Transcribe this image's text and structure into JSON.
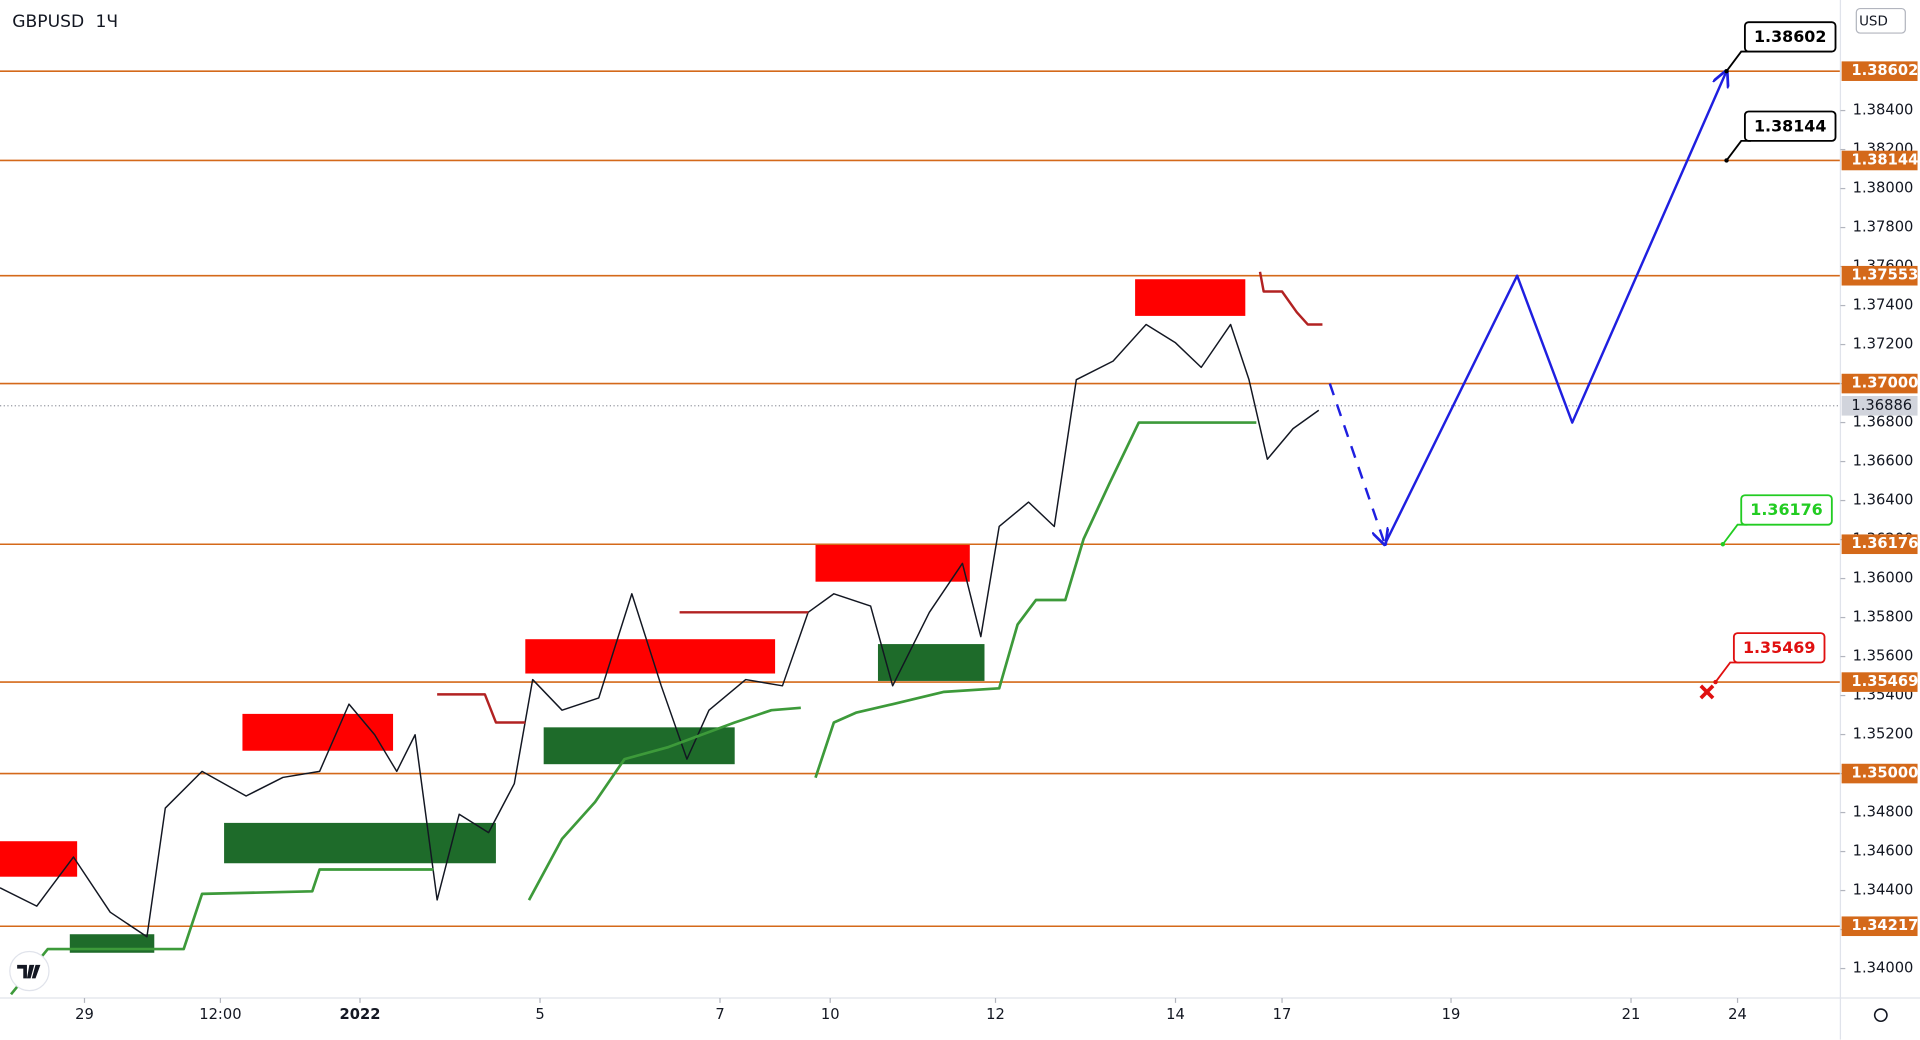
{
  "chart_data": {
    "type": "line",
    "symbol": "GBPUSD",
    "interval": "1Ч",
    "currency": "USD",
    "ylim": [
      1.33849,
      1.38967
    ],
    "xlim": [
      0,
      500
    ],
    "yticks": [
      {
        "value": 1.34,
        "label": "1.34000"
      },
      {
        "value": 1.342,
        "label": "1.34200"
      },
      {
        "value": 1.344,
        "label": "1.34400"
      },
      {
        "value": 1.346,
        "label": "1.34600"
      },
      {
        "value": 1.348,
        "label": "1.34800"
      },
      {
        "value": 1.35,
        "label": "1.35000"
      },
      {
        "value": 1.352,
        "label": "1.35200"
      },
      {
        "value": 1.354,
        "label": "1.35400"
      },
      {
        "value": 1.356,
        "label": "1.35600"
      },
      {
        "value": 1.358,
        "label": "1.35800"
      },
      {
        "value": 1.36,
        "label": "1.36000"
      },
      {
        "value": 1.362,
        "label": "1.36200"
      },
      {
        "value": 1.364,
        "label": "1.36400"
      },
      {
        "value": 1.366,
        "label": "1.36600"
      },
      {
        "value": 1.368,
        "label": "1.36800"
      },
      {
        "value": 1.37,
        "label": "1.37000"
      },
      {
        "value": 1.372,
        "label": "1.37200"
      },
      {
        "value": 1.374,
        "label": "1.37400"
      },
      {
        "value": 1.376,
        "label": "1.37600"
      },
      {
        "value": 1.378,
        "label": "1.37800"
      },
      {
        "value": 1.38,
        "label": "1.38000"
      },
      {
        "value": 1.382,
        "label": "1.38200"
      },
      {
        "value": 1.384,
        "label": "1.38400"
      }
    ],
    "xticks": [
      {
        "value": 23,
        "label": "29"
      },
      {
        "value": 60,
        "label": "12:00"
      },
      {
        "value": 98,
        "label": "2022"
      },
      {
        "value": 147,
        "label": "5"
      },
      {
        "value": 196,
        "label": "7"
      },
      {
        "value": 226,
        "label": "10"
      },
      {
        "value": 271,
        "label": "12"
      },
      {
        "value": 320,
        "label": "14"
      },
      {
        "value": 349,
        "label": "17"
      },
      {
        "value": 395,
        "label": "19"
      },
      {
        "value": 444,
        "label": "21"
      },
      {
        "value": 473,
        "label": "24"
      }
    ],
    "levels": [
      1.38602,
      1.38144,
      1.37553,
      {
        "value": 1.37,
        "label": "1.37000"
      },
      1.36176,
      1.35469,
      {
        "value": 1.35,
        "label": "1.35000"
      },
      1.34217
    ],
    "level_color": "#d4691a",
    "last_price": 1.36886,
    "series": [
      {
        "color": "#131722",
        "width": 1.2,
        "x": [
          0,
          10,
          20,
          30,
          40,
          45,
          55,
          67,
          77,
          87,
          95,
          102,
          108,
          113,
          119,
          125,
          133,
          140,
          145,
          153,
          163,
          172,
          180,
          187,
          193,
          203,
          213,
          220,
          227,
          237,
          243,
          253,
          262,
          267,
          272,
          280,
          287,
          293,
          303,
          312,
          320,
          327,
          335,
          340,
          345,
          352,
          359
        ],
        "values": [
          1.34414,
          1.3432,
          1.34572,
          1.34289,
          1.34163,
          1.34823,
          1.35011,
          1.34885,
          1.3498,
          1.35011,
          1.35356,
          1.35199,
          1.35011,
          1.35199,
          1.34352,
          1.34791,
          1.34697,
          1.34948,
          1.35482,
          1.35325,
          1.35388,
          1.35922,
          1.3545,
          1.35074,
          1.35325,
          1.35482,
          1.3545,
          1.35827,
          1.35922,
          1.35859,
          1.3545,
          1.35827,
          1.36078,
          1.35702,
          1.36267,
          1.36392,
          1.36267,
          1.3702,
          1.37115,
          1.37303,
          1.37209,
          1.37083,
          1.37303,
          1.3702,
          1.36612,
          1.36769,
          1.36863
        ]
      },
      {
        "color": "#3d9a3a",
        "width": 2.2,
        "x": [
          3,
          13,
          50,
          55,
          85,
          87,
          118,
          null,
          144,
          153,
          162,
          170,
          182,
          200,
          210,
          218,
          null,
          222,
          227,
          233,
          243,
          257,
          272,
          277,
          282,
          290,
          295,
          302,
          310,
          342
        ],
        "values": [
          1.33868,
          1.341,
          1.341,
          1.34383,
          1.34396,
          1.34508,
          1.34508,
          null,
          1.34351,
          1.34665,
          1.34854,
          1.35074,
          1.35136,
          1.35262,
          1.35325,
          1.35337,
          null,
          1.34979,
          1.35262,
          1.35312,
          1.35356,
          1.35419,
          1.35437,
          1.35764,
          1.3589,
          1.3589,
          1.36204,
          1.36487,
          1.368,
          1.368
        ]
      },
      {
        "color": "#b22222",
        "width": 2,
        "x": [
          119,
          132,
          135,
          143,
          null,
          185,
          220,
          null,
          343,
          344,
          349,
          353,
          356,
          360
        ],
        "values": [
          1.35406,
          1.35406,
          1.35262,
          1.35262,
          null,
          1.35827,
          1.35827,
          null,
          1.37573,
          1.37472,
          1.37472,
          1.37366,
          1.37303,
          1.37303
        ]
      },
      {
        "color": "#1f1fe0",
        "width": 2,
        "dashed": true,
        "x": [
          362,
          377
        ],
        "values": [
          1.37,
          1.36176
        ]
      },
      {
        "color": "#1f1fe0",
        "width": 2,
        "x": [
          377,
          413,
          428,
          470
        ],
        "values": [
          1.36176,
          1.37553,
          1.368,
          1.38602
        ]
      }
    ],
    "zones": [
      {
        "color": "#ff0000",
        "x": [
          0,
          21
        ],
        "range": [
          1.34471,
          1.34653
        ]
      },
      {
        "color": "#ff0000",
        "x": [
          66,
          107
        ],
        "range": [
          1.35117,
          1.35306
        ]
      },
      {
        "color": "#ff0000",
        "x": [
          143,
          211
        ],
        "range": [
          1.35513,
          1.35689
        ]
      },
      {
        "color": "#ff0000",
        "x": [
          222,
          264
        ],
        "range": [
          1.35984,
          1.36173
        ]
      },
      {
        "color": "#ff0000",
        "x": [
          309,
          339
        ],
        "range": [
          1.37347,
          1.37535
        ]
      },
      {
        "color": "#1e6b2a",
        "x": [
          19,
          42
        ],
        "range": [
          1.34081,
          1.34176
        ]
      },
      {
        "color": "#1e6b2a",
        "x": [
          61,
          135
        ],
        "range": [
          1.3454,
          1.34747
        ]
      },
      {
        "color": "#1e6b2a",
        "x": [
          148,
          200
        ],
        "range": [
          1.35048,
          1.35237
        ]
      },
      {
        "color": "#1e6b2a",
        "x": [
          239,
          268
        ],
        "range": [
          1.35475,
          1.35664
        ]
      }
    ],
    "callouts": [
      {
        "value": 1.38602,
        "x": 470,
        "color": "#000000"
      },
      {
        "value": 1.38144,
        "x": 470,
        "color": "#000000"
      },
      {
        "value": 1.36176,
        "x": 469,
        "color": "#22cc22"
      },
      {
        "value": 1.35469,
        "x": 467,
        "color": "#e01010"
      }
    ]
  }
}
